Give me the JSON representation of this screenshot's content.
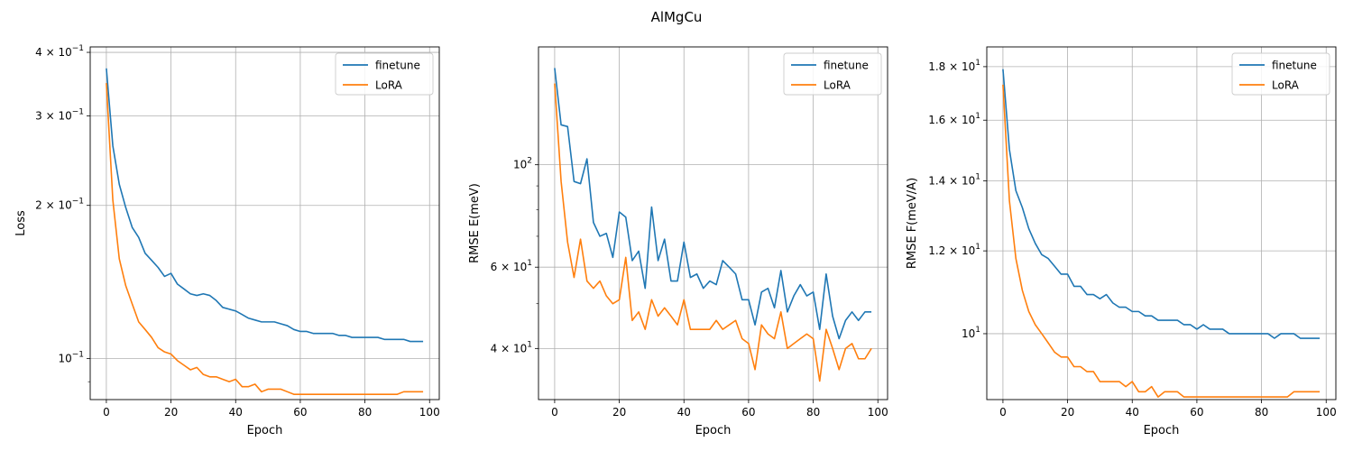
{
  "suptitle": "AlMgCu",
  "chart_data": [
    {
      "type": "line",
      "xlabel": "Epoch",
      "ylabel": "Loss",
      "yscale": "log",
      "xlim": [
        -5,
        103
      ],
      "ylim": [
        0.083,
        0.41
      ],
      "xticks": [
        0,
        20,
        40,
        60,
        80,
        100
      ],
      "yticks": [
        {
          "value": 0.1,
          "mant": "10",
          "exp": "−1"
        },
        {
          "value": 0.2,
          "mant": "2 × 10",
          "exp": "−1"
        },
        {
          "value": 0.3,
          "mant": "3 × 10",
          "exp": "−1"
        },
        {
          "value": 0.4,
          "mant": "4 × 10",
          "exp": "−1"
        }
      ],
      "minor_yticks": [
        0.09,
        0.5
      ],
      "grid": true,
      "legend": "top-right",
      "x": [
        0,
        2,
        4,
        6,
        8,
        10,
        12,
        14,
        16,
        18,
        20,
        22,
        24,
        26,
        28,
        30,
        32,
        34,
        36,
        38,
        40,
        42,
        44,
        46,
        48,
        50,
        52,
        54,
        56,
        58,
        60,
        62,
        64,
        66,
        68,
        70,
        72,
        74,
        76,
        78,
        80,
        82,
        84,
        86,
        88,
        90,
        92,
        94,
        96,
        98
      ],
      "series": [
        {
          "name": "finetune",
          "color": "#1f77b4",
          "values": [
            0.372,
            0.262,
            0.22,
            0.198,
            0.181,
            0.173,
            0.161,
            0.156,
            0.151,
            0.145,
            0.147,
            0.14,
            0.137,
            0.134,
            0.133,
            0.134,
            0.133,
            0.13,
            0.126,
            0.125,
            0.124,
            0.122,
            0.12,
            0.119,
            0.118,
            0.118,
            0.118,
            0.117,
            0.116,
            0.114,
            0.113,
            0.113,
            0.112,
            0.112,
            0.112,
            0.112,
            0.111,
            0.111,
            0.11,
            0.11,
            0.11,
            0.11,
            0.11,
            0.109,
            0.109,
            0.109,
            0.109,
            0.108,
            0.108,
            0.108
          ]
        },
        {
          "name": "LoRA",
          "color": "#ff7f0e",
          "values": [
            0.348,
            0.205,
            0.157,
            0.139,
            0.128,
            0.118,
            0.114,
            0.11,
            0.105,
            0.103,
            0.102,
            0.099,
            0.097,
            0.095,
            0.096,
            0.093,
            0.092,
            0.092,
            0.091,
            0.09,
            0.091,
            0.088,
            0.088,
            0.089,
            0.086,
            0.087,
            0.087,
            0.087,
            0.086,
            0.085,
            0.085,
            0.085,
            0.085,
            0.085,
            0.085,
            0.085,
            0.085,
            0.085,
            0.085,
            0.085,
            0.085,
            0.085,
            0.085,
            0.085,
            0.085,
            0.085,
            0.086,
            0.086,
            0.086,
            0.086
          ]
        }
      ]
    },
    {
      "type": "line",
      "xlabel": "Epoch",
      "ylabel": "RMSE E(meV)",
      "yscale": "log",
      "xlim": [
        -5,
        103
      ],
      "ylim": [
        31,
        180
      ],
      "xticks": [
        0,
        20,
        40,
        60,
        80,
        100
      ],
      "yticks": [
        {
          "value": 40,
          "mant": "4 × 10",
          "exp": "1"
        },
        {
          "value": 60,
          "mant": "6 × 10",
          "exp": "1"
        },
        {
          "value": 100,
          "mant": "10",
          "exp": "2"
        }
      ],
      "minor_yticks": [
        50,
        70,
        80,
        90
      ],
      "grid": true,
      "legend": "top-right",
      "x": [
        0,
        2,
        4,
        6,
        8,
        10,
        12,
        14,
        16,
        18,
        20,
        22,
        24,
        26,
        28,
        30,
        32,
        34,
        36,
        38,
        40,
        42,
        44,
        46,
        48,
        50,
        52,
        54,
        56,
        58,
        60,
        62,
        64,
        66,
        68,
        70,
        72,
        74,
        76,
        78,
        80,
        82,
        84,
        86,
        88,
        90,
        92,
        94,
        96,
        98
      ],
      "series": [
        {
          "name": "finetune",
          "color": "#1f77b4",
          "values": [
            162,
            122,
            121,
            92,
            91,
            103,
            75,
            70,
            71,
            63,
            79,
            77,
            62,
            65,
            54,
            81,
            62,
            69,
            56,
            56,
            68,
            57,
            58,
            54,
            56,
            55,
            62,
            60,
            58,
            51,
            51,
            45,
            53,
            54,
            49,
            59,
            48,
            52,
            55,
            52,
            53,
            44,
            58,
            47,
            42,
            46,
            48,
            46,
            48,
            48
          ]
        },
        {
          "name": "LoRA",
          "color": "#ff7f0e",
          "values": [
            150,
            92,
            68,
            57,
            69,
            56,
            54,
            56,
            52,
            50,
            51,
            63,
            46,
            48,
            44,
            51,
            47,
            49,
            47,
            45,
            51,
            44,
            44,
            44,
            44,
            46,
            44,
            45,
            46,
            42,
            41,
            36,
            45,
            43,
            42,
            48,
            40,
            41,
            42,
            43,
            42,
            34,
            44,
            40,
            36,
            40,
            41,
            38,
            38,
            40
          ]
        }
      ]
    },
    {
      "type": "line",
      "xlabel": "Epoch",
      "ylabel": "RMSE F(meV/A)",
      "yscale": "log",
      "xlim": [
        -5,
        103
      ],
      "ylim": [
        8.65,
        18.8
      ],
      "xticks": [
        0,
        20,
        40,
        60,
        80,
        100
      ],
      "yticks": [
        {
          "value": 10,
          "mant": "10",
          "exp": "1"
        },
        {
          "value": 12,
          "mant": "1.2 × 10",
          "exp": "1"
        },
        {
          "value": 14,
          "mant": "1.4 × 10",
          "exp": "1"
        },
        {
          "value": 16,
          "mant": "1.6 × 10",
          "exp": "1"
        },
        {
          "value": 18,
          "mant": "1.8 × 10",
          "exp": "1"
        }
      ],
      "minor_yticks": [],
      "grid": true,
      "legend": "top-right",
      "x": [
        0,
        2,
        4,
        6,
        8,
        10,
        12,
        14,
        16,
        18,
        20,
        22,
        24,
        26,
        28,
        30,
        32,
        34,
        36,
        38,
        40,
        42,
        44,
        46,
        48,
        50,
        52,
        54,
        56,
        58,
        60,
        62,
        64,
        66,
        68,
        70,
        72,
        74,
        76,
        78,
        80,
        82,
        84,
        86,
        88,
        90,
        92,
        94,
        96,
        98
      ],
      "series": [
        {
          "name": "finetune",
          "color": "#1f77b4",
          "values": [
            17.9,
            15.0,
            13.7,
            13.2,
            12.6,
            12.2,
            11.9,
            11.8,
            11.6,
            11.4,
            11.4,
            11.1,
            11.1,
            10.9,
            10.9,
            10.8,
            10.9,
            10.7,
            10.6,
            10.6,
            10.5,
            10.5,
            10.4,
            10.4,
            10.3,
            10.3,
            10.3,
            10.3,
            10.2,
            10.2,
            10.1,
            10.2,
            10.1,
            10.1,
            10.1,
            10.0,
            10.0,
            10.0,
            10.0,
            10.0,
            10.0,
            10.0,
            9.9,
            10.0,
            10.0,
            10.0,
            9.9,
            9.9,
            9.9,
            9.9
          ]
        },
        {
          "name": "LoRA",
          "color": "#ff7f0e",
          "values": [
            17.3,
            13.4,
            11.8,
            11.0,
            10.5,
            10.2,
            10.0,
            9.8,
            9.6,
            9.5,
            9.5,
            9.3,
            9.3,
            9.2,
            9.2,
            9.0,
            9.0,
            9.0,
            9.0,
            8.9,
            9.0,
            8.8,
            8.8,
            8.9,
            8.7,
            8.8,
            8.8,
            8.8,
            8.7,
            8.7,
            8.7,
            8.7,
            8.7,
            8.7,
            8.7,
            8.7,
            8.7,
            8.7,
            8.7,
            8.7,
            8.7,
            8.7,
            8.7,
            8.7,
            8.7,
            8.8,
            8.8,
            8.8,
            8.8,
            8.8
          ]
        }
      ]
    }
  ]
}
